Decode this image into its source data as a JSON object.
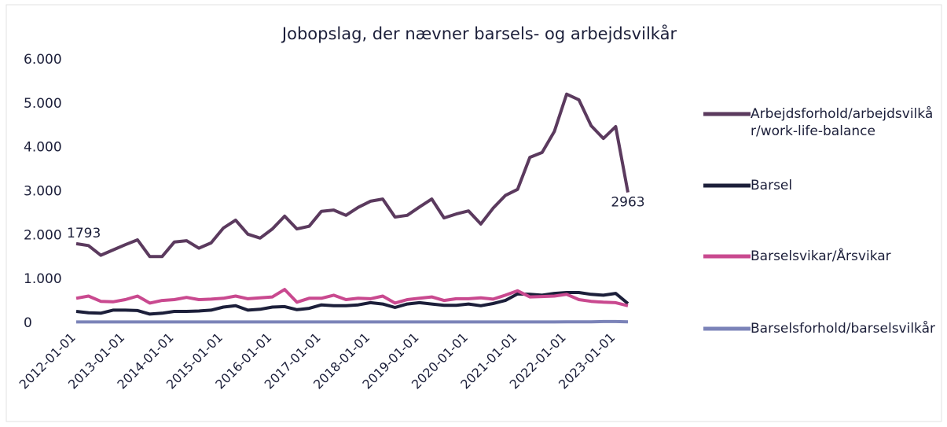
{
  "chart_data": {
    "type": "line",
    "title": "Jobopslag, der nævner barsels- og arbejdsvilkår",
    "categories": [
      "2012-01-01",
      null,
      null,
      null,
      "2013-01-01",
      null,
      null,
      null,
      "2014-01-01",
      null,
      null,
      null,
      "2015-01-01",
      null,
      null,
      null,
      "2016-01-01",
      null,
      null,
      null,
      "2017-01-01",
      null,
      null,
      null,
      "2018-01-01",
      null,
      null,
      null,
      "2019-01-01",
      null,
      null,
      null,
      "2020-01-01",
      null,
      null,
      null,
      "2021-01-01",
      null,
      null,
      null,
      "2022-01-01",
      null,
      null,
      null,
      "2023-01-01",
      null
    ],
    "series": [
      {
        "name": "Arbejdsforhold/arbejdsvilkår/work-life-balance",
        "color": "#5b3a5e",
        "values": [
          1793,
          1750,
          1530,
          1650,
          1770,
          1880,
          1500,
          1500,
          1830,
          1860,
          1690,
          1810,
          2150,
          2330,
          2010,
          1920,
          2130,
          2420,
          2130,
          2190,
          2530,
          2560,
          2440,
          2620,
          2760,
          2810,
          2400,
          2440,
          2630,
          2810,
          2380,
          2470,
          2540,
          2240,
          2600,
          2890,
          3030,
          3760,
          3870,
          4350,
          5200,
          5070,
          4480,
          4190,
          4460,
          2963
        ]
      },
      {
        "name": "Barsel",
        "color": "#1c1f3a",
        "values": [
          250,
          220,
          210,
          280,
          280,
          270,
          190,
          210,
          250,
          250,
          260,
          280,
          350,
          380,
          280,
          300,
          350,
          360,
          290,
          320,
          400,
          380,
          380,
          400,
          450,
          420,
          340,
          420,
          450,
          420,
          390,
          390,
          420,
          380,
          430,
          500,
          650,
          640,
          620,
          660,
          680,
          680,
          640,
          620,
          660,
          430
        ]
      },
      {
        "name": "Barselsvikar/Årsvikar",
        "color": "#c9498f",
        "values": [
          550,
          600,
          480,
          470,
          520,
          600,
          440,
          500,
          520,
          570,
          520,
          530,
          550,
          600,
          540,
          560,
          580,
          750,
          460,
          550,
          550,
          620,
          520,
          550,
          540,
          600,
          440,
          520,
          550,
          580,
          500,
          540,
          540,
          560,
          530,
          620,
          720,
          580,
          590,
          600,
          640,
          520,
          480,
          460,
          450,
          380
        ]
      },
      {
        "name": "Barselsforhold/barselsvilkår",
        "color": "#7b83b8",
        "values": [
          10,
          10,
          10,
          10,
          10,
          10,
          10,
          10,
          10,
          10,
          10,
          10,
          10,
          10,
          10,
          10,
          10,
          10,
          10,
          10,
          10,
          10,
          10,
          10,
          10,
          10,
          10,
          10,
          10,
          10,
          10,
          10,
          10,
          10,
          10,
          10,
          10,
          10,
          10,
          10,
          15,
          15,
          15,
          20,
          20,
          15
        ]
      }
    ],
    "ylim": [
      0,
      6000
    ],
    "yticks": [
      0,
      {
        "value": 1000,
        "label": "1.000"
      },
      {
        "value": 2000,
        "label": "2.000"
      },
      {
        "value": 3000,
        "label": "3.000"
      },
      {
        "value": 4000,
        "label": "4.000"
      },
      {
        "value": 5000,
        "label": "5.000"
      },
      {
        "value": 6000,
        "label": "6.000"
      }
    ],
    "grid": false
  }
}
